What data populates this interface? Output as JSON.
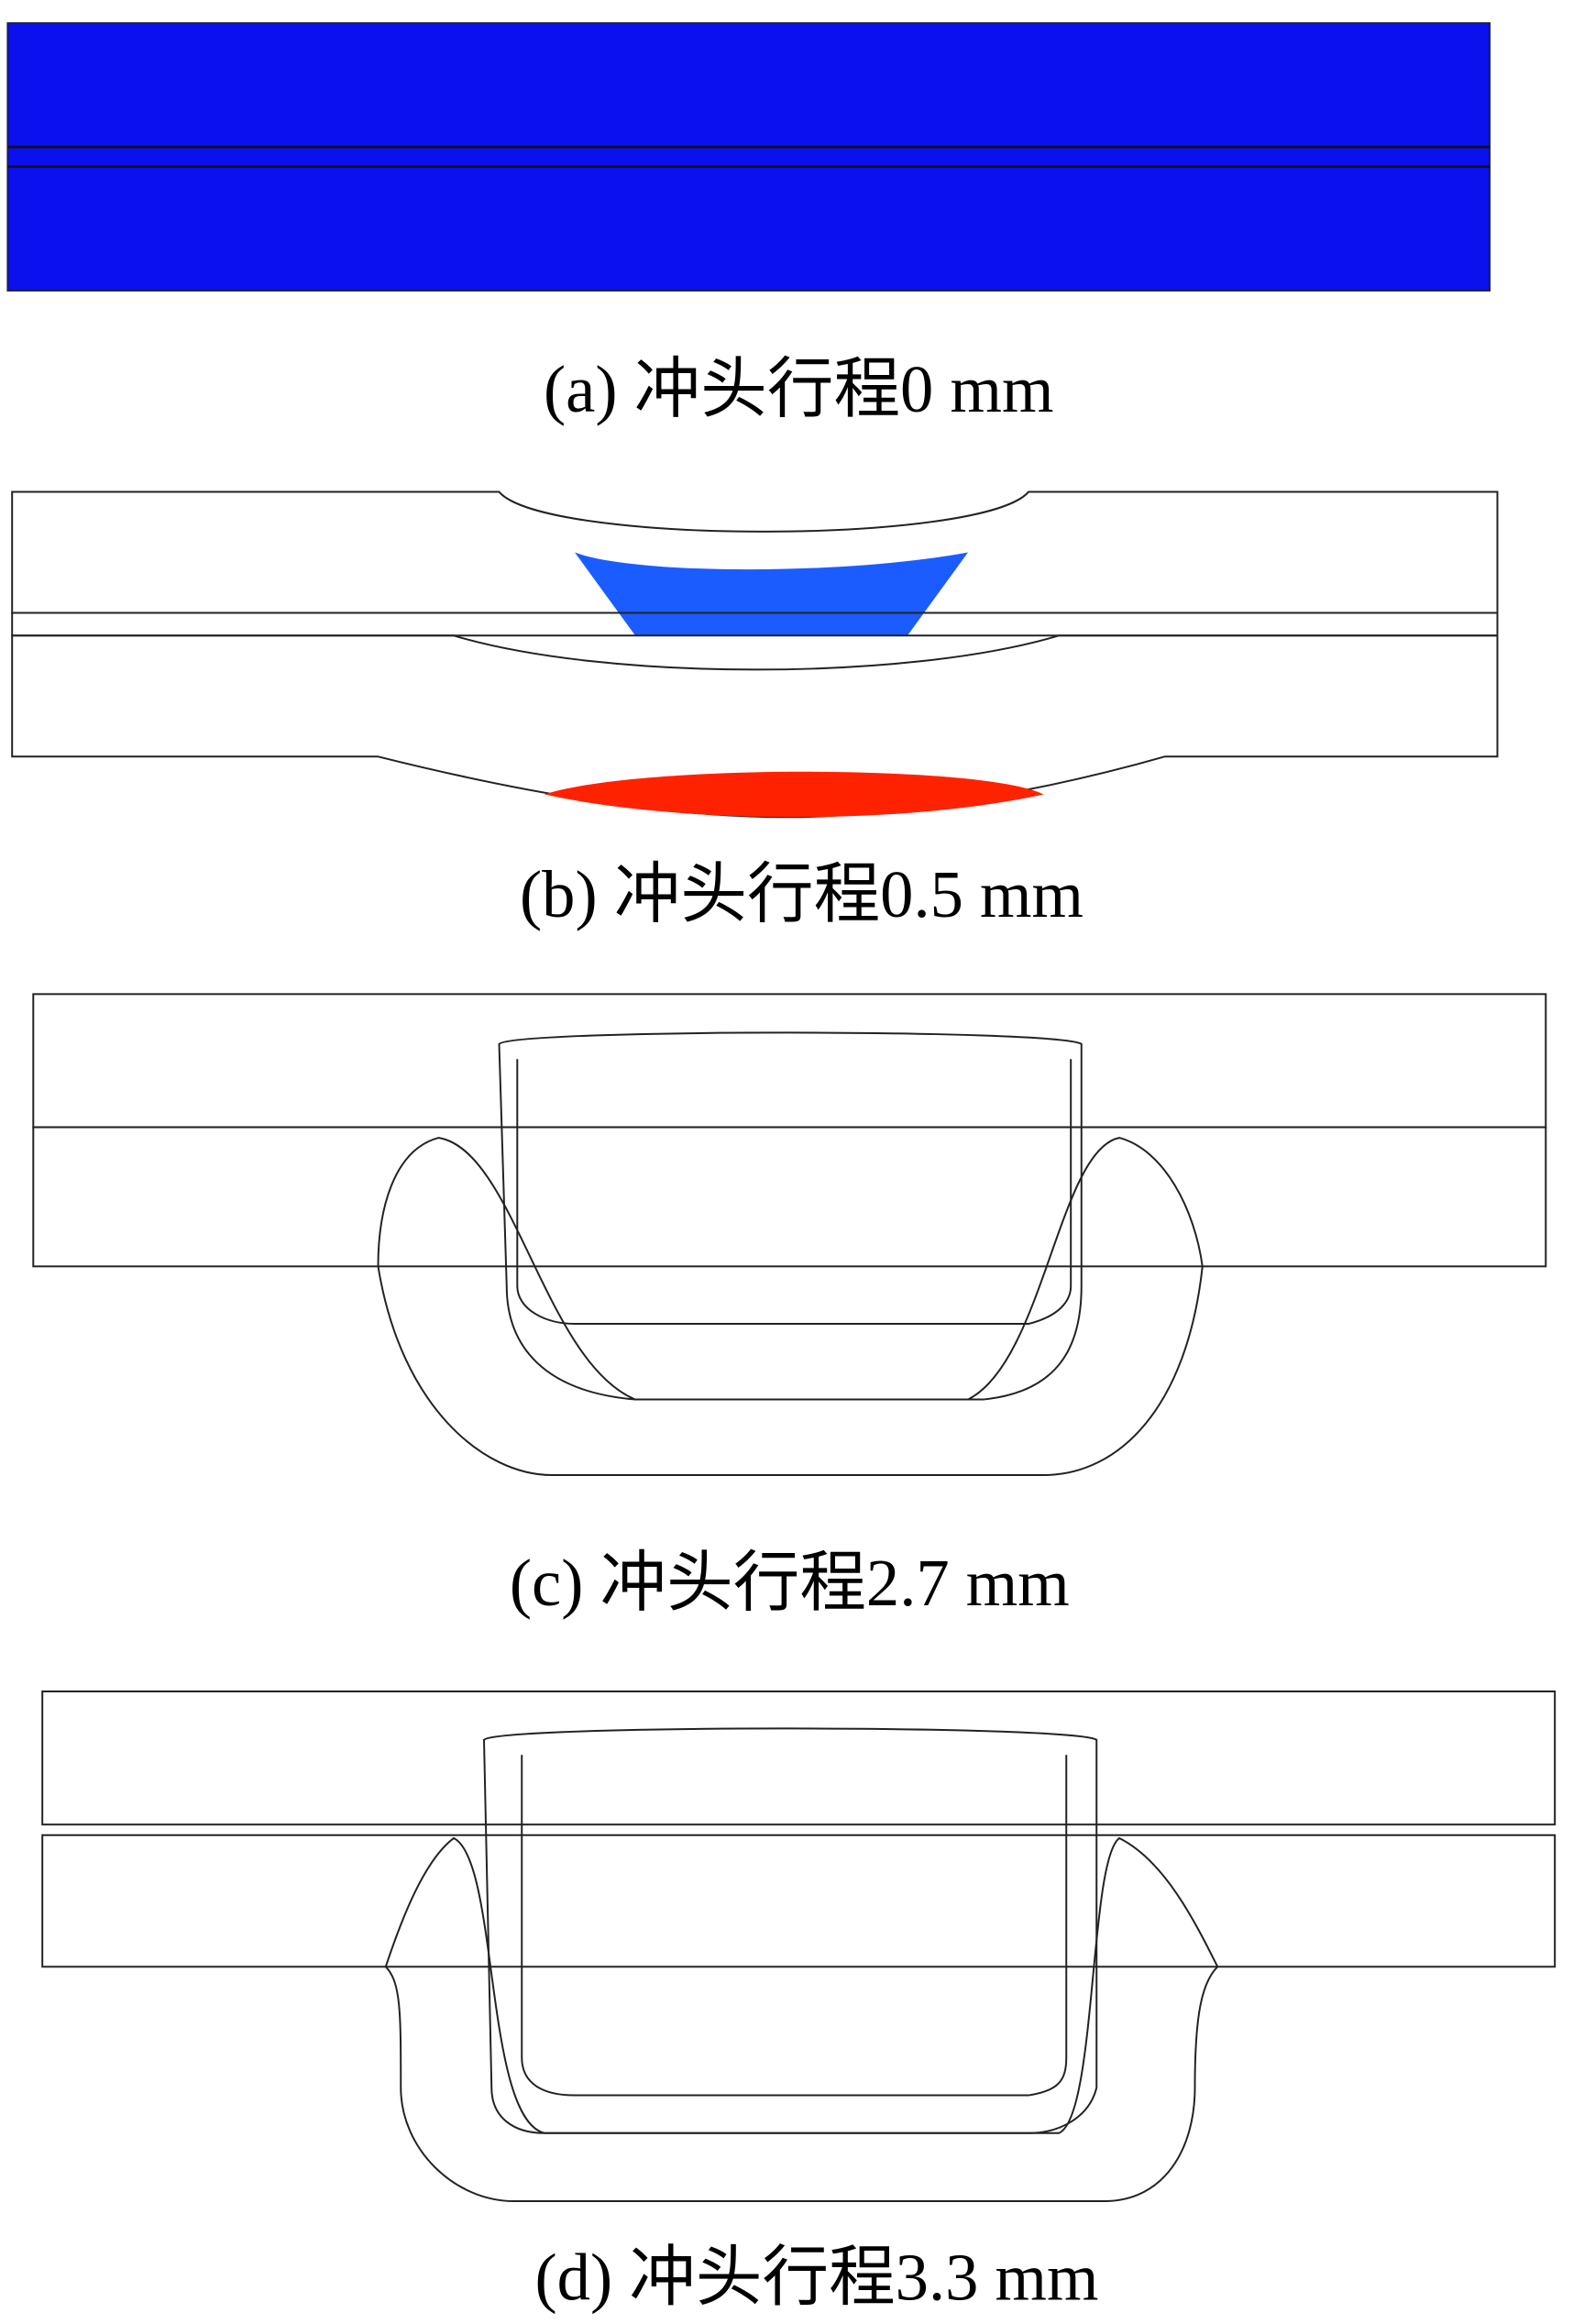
{
  "captions": [
    "(a) 冲头行程0 mm",
    "(b) 冲头行程0.5 mm",
    "(c) 冲头行程2.7 mm",
    "(d) 冲头行程3.3 mm"
  ]
}
